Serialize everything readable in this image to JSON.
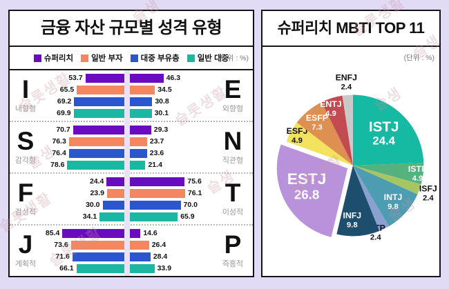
{
  "page": {
    "background": "#e2dbf6"
  },
  "watermark": {
    "text": "슬롯생활",
    "short": "슬생"
  },
  "chart_data": [
    {
      "type": "bar",
      "variant": "diverging-horizontal",
      "title": "금융 자산 규모별 성격 유형",
      "unit_label": "(단위 : %)",
      "series": [
        "슈퍼리치",
        "일반 부자",
        "대중 부유층",
        "일반 대중"
      ],
      "series_colors": [
        "#6a0bc0",
        "#f4875f",
        "#2a57cd",
        "#1ab7a3"
      ],
      "xlim_each_side": [
        0,
        100
      ],
      "sections": [
        {
          "left_letter": "I",
          "left_label": "내향형",
          "right_letter": "E",
          "right_label": "외향형",
          "left_values": [
            53.7,
            65.5,
            69.2,
            69.9
          ],
          "right_values": [
            46.3,
            34.5,
            30.8,
            30.1
          ]
        },
        {
          "left_letter": "S",
          "left_label": "감각형",
          "right_letter": "N",
          "right_label": "직관형",
          "left_values": [
            70.7,
            76.3,
            76.4,
            78.6
          ],
          "right_values": [
            29.3,
            23.7,
            23.6,
            21.4
          ]
        },
        {
          "left_letter": "F",
          "left_label": "감성적",
          "right_letter": "T",
          "right_label": "이성적",
          "left_values": [
            24.4,
            23.9,
            30.0,
            34.1
          ],
          "right_values": [
            75.6,
            76.1,
            70.0,
            65.9
          ]
        },
        {
          "left_letter": "J",
          "left_label": "계획적",
          "right_letter": "P",
          "right_label": "즉흥적",
          "left_values": [
            85.4,
            73.6,
            71.6,
            66.1
          ],
          "right_values": [
            14.6,
            26.4,
            28.4,
            33.9
          ]
        }
      ]
    },
    {
      "type": "pie",
      "title": "슈퍼리치 MBTI TOP 11",
      "unit_label": "(단위 : %)",
      "start_angle_deg": 0,
      "direction": "clockwise",
      "slices": [
        {
          "name": "ISTJ",
          "value": 24.4,
          "color": "#16b9a1"
        },
        {
          "name": "ISTP",
          "value": 4.9,
          "color": "#55b27e"
        },
        {
          "name": "ISFJ",
          "value": 2.4,
          "color": "#a6c565"
        },
        {
          "name": "INTJ",
          "value": 9.8,
          "color": "#4c9cb2"
        },
        {
          "name": "INTP",
          "value": 2.4,
          "color": "#89a0d0"
        },
        {
          "name": "INFJ",
          "value": 9.8,
          "color": "#1e4e6e"
        },
        {
          "name": "ESTJ",
          "value": 26.8,
          "color": "#b992dc",
          "exploded": true
        },
        {
          "name": "ESFJ",
          "value": 4.9,
          "color": "#f2e25d"
        },
        {
          "name": "ESFP",
          "value": 7.3,
          "color": "#de9052"
        },
        {
          "name": "ENTJ",
          "value": 4.9,
          "color": "#c14b51"
        },
        {
          "name": "ENFJ",
          "value": 2.4,
          "color": "#c9c9c9"
        }
      ]
    }
  ]
}
